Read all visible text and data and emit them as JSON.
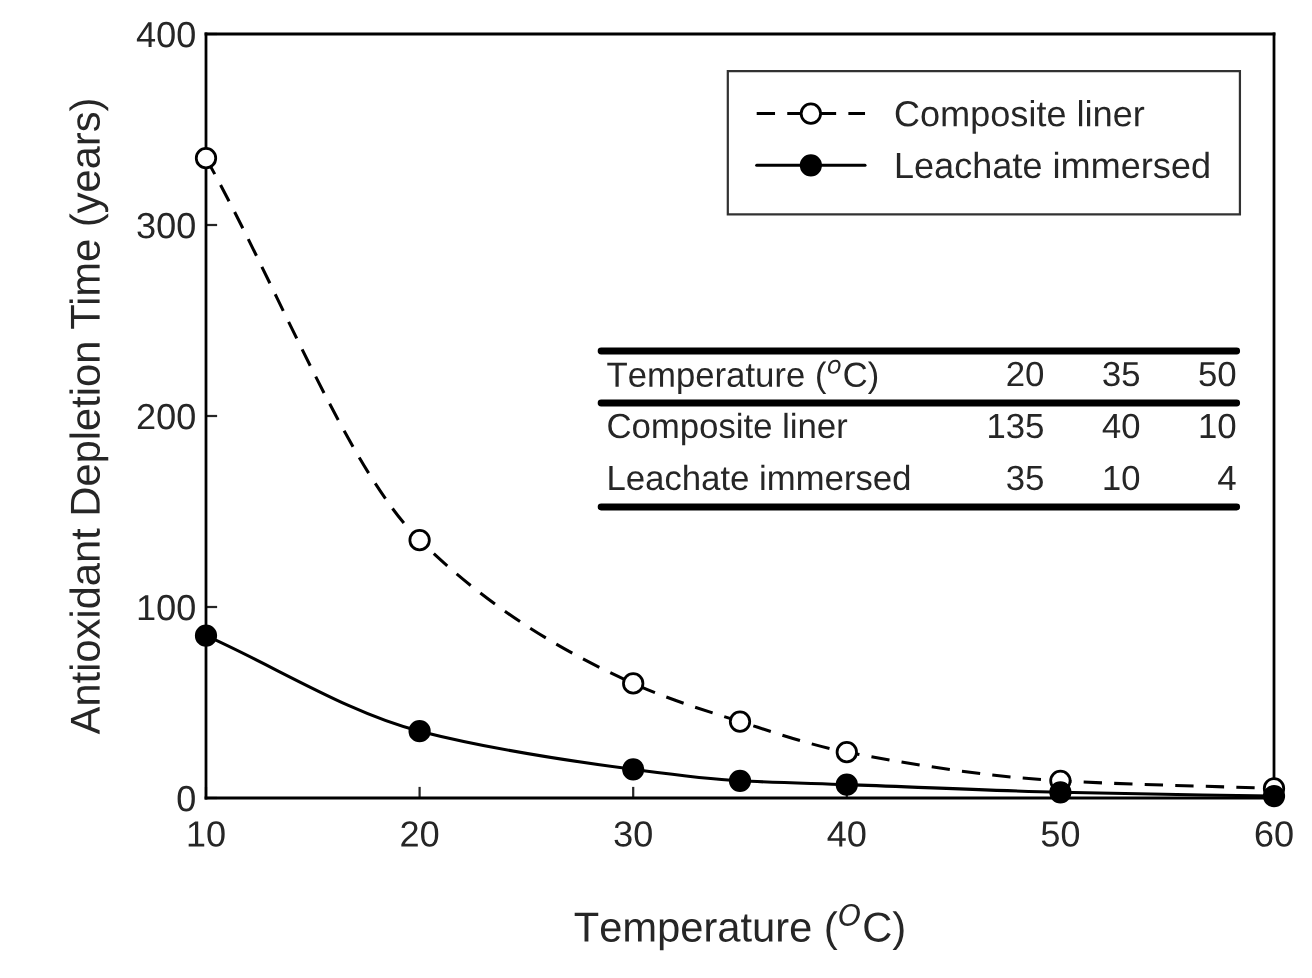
{
  "chart_data": {
    "type": "line",
    "xlabel": "Temperature ($^{O}$C)",
    "ylabel": "Antioxidant Depletion Time (years)",
    "x": [
      10,
      20,
      30,
      35,
      40,
      50,
      60
    ],
    "series": [
      {
        "name": "Composite liner",
        "color": "#000000",
        "line_style": "dashed",
        "marker": "circle",
        "values": [
          335,
          135,
          60,
          40,
          24,
          9,
          5
        ]
      },
      {
        "name": "Leachate immersed",
        "color": "#000000",
        "line_style": "solid",
        "marker": "circle",
        "values": [
          85,
          35,
          15,
          9,
          7,
          3,
          1
        ]
      }
    ],
    "annotations": [
      "Temperature ($^{o}$C)",
      "20",
      "35",
      "50",
      "Composite liner",
      "135",
      "40",
      "10",
      "Leachate immersed",
      "35",
      "10",
      "4"
    ],
    "xlim": [
      10,
      60
    ],
    "xticks": [
      10,
      20,
      30,
      40,
      50,
      60
    ],
    "ylim": [
      0,
      400
    ],
    "yticks": [
      0,
      100,
      200,
      300,
      400
    ],
    "grid": false,
    "legend": "top right"
  }
}
